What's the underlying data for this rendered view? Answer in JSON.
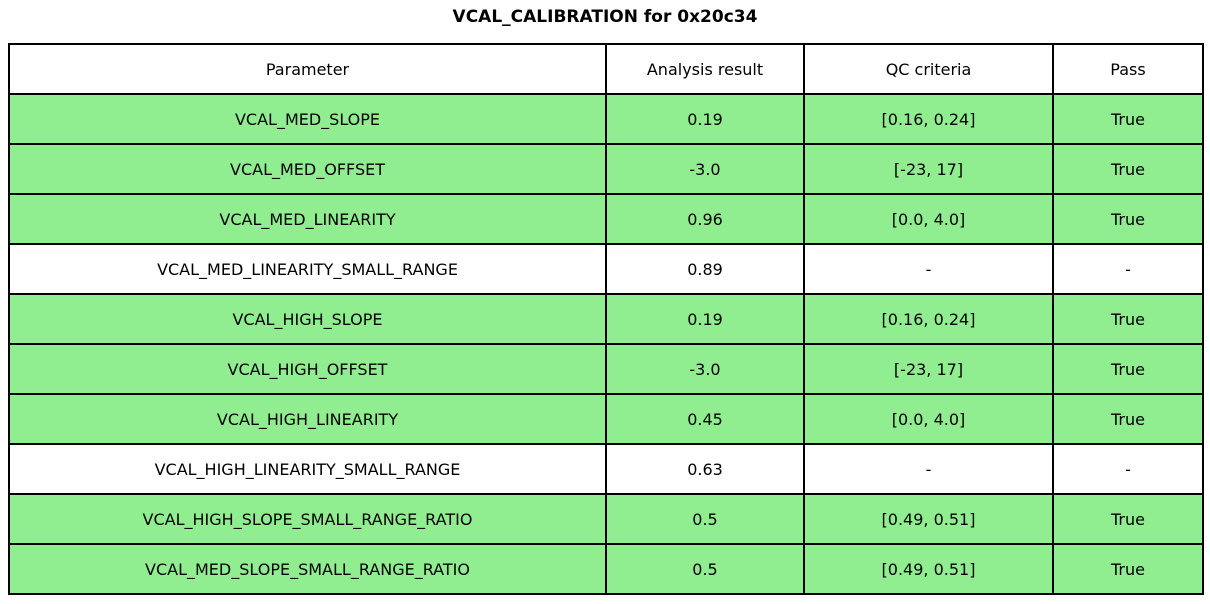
{
  "title": "VCAL_CALIBRATION for 0x20c34",
  "colors": {
    "pass_row_bg": "#90EE90",
    "default_row_bg": "#FFFFFF",
    "border": "#000000",
    "text": "#000000"
  },
  "chart_data": {
    "type": "table",
    "title": "VCAL_CALIBRATION for 0x20c34",
    "columns": [
      "Parameter",
      "Analysis result",
      "QC criteria",
      "Pass"
    ],
    "rows": [
      {
        "cells": [
          "VCAL_MED_SLOPE",
          "0.19",
          "[0.16, 0.24]",
          "True"
        ],
        "highlighted": true
      },
      {
        "cells": [
          "VCAL_MED_OFFSET",
          "-3.0",
          "[-23, 17]",
          "True"
        ],
        "highlighted": true
      },
      {
        "cells": [
          "VCAL_MED_LINEARITY",
          "0.96",
          "[0.0, 4.0]",
          "True"
        ],
        "highlighted": true
      },
      {
        "cells": [
          "VCAL_MED_LINEARITY_SMALL_RANGE",
          "0.89",
          "-",
          "-"
        ],
        "highlighted": false
      },
      {
        "cells": [
          "VCAL_HIGH_SLOPE",
          "0.19",
          "[0.16, 0.24]",
          "True"
        ],
        "highlighted": true
      },
      {
        "cells": [
          "VCAL_HIGH_OFFSET",
          "-3.0",
          "[-23, 17]",
          "True"
        ],
        "highlighted": true
      },
      {
        "cells": [
          "VCAL_HIGH_LINEARITY",
          "0.45",
          "[0.0, 4.0]",
          "True"
        ],
        "highlighted": true
      },
      {
        "cells": [
          "VCAL_HIGH_LINEARITY_SMALL_RANGE",
          "0.63",
          "-",
          "-"
        ],
        "highlighted": false
      },
      {
        "cells": [
          "VCAL_HIGH_SLOPE_SMALL_RANGE_RATIO",
          "0.5",
          "[0.49, 0.51]",
          "True"
        ],
        "highlighted": true
      },
      {
        "cells": [
          "VCAL_MED_SLOPE_SMALL_RANGE_RATIO",
          "0.5",
          "[0.49, 0.51]",
          "True"
        ],
        "highlighted": true
      }
    ],
    "layout": {
      "legend": "none",
      "grid": "table-borders",
      "highlight_meaning": "row passes QC criteria"
    }
  }
}
